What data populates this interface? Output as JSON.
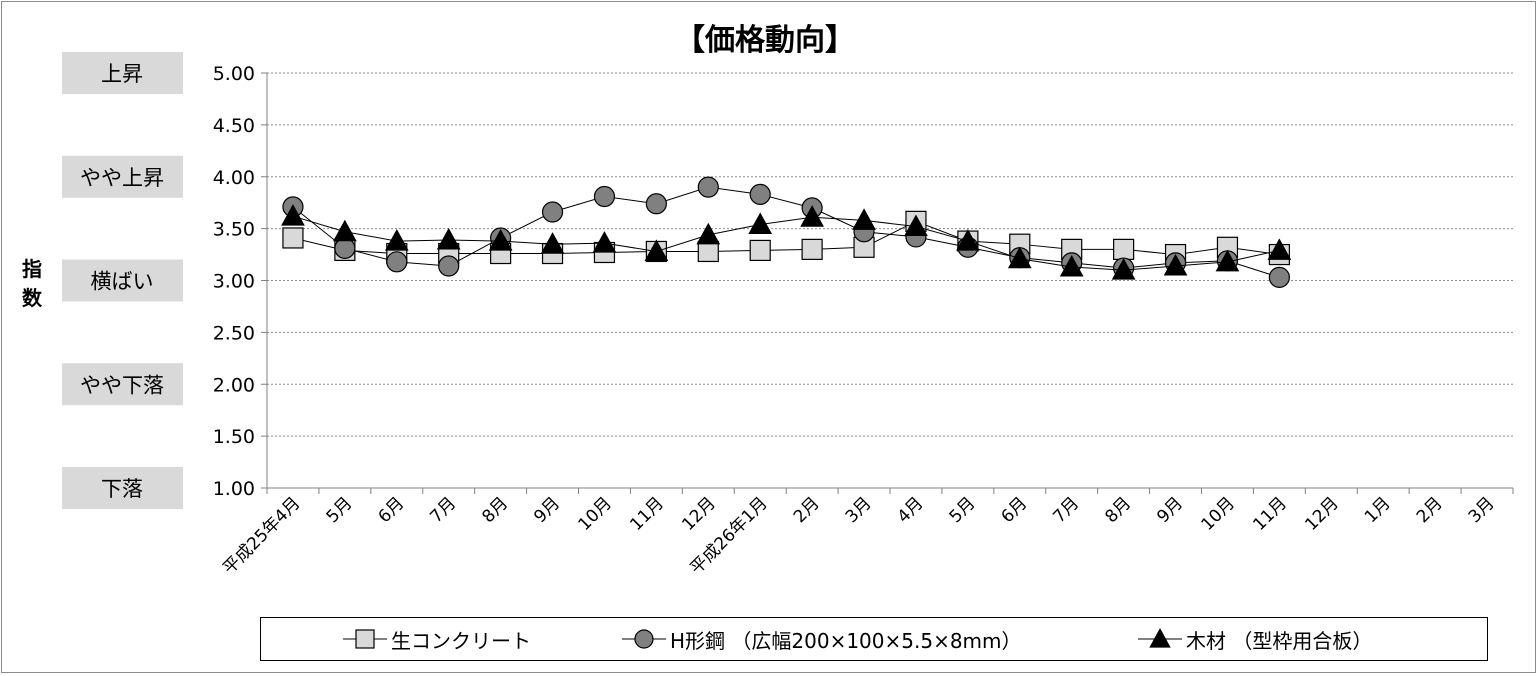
{
  "chart_data": {
    "type": "line",
    "title": "【価格動向】",
    "ylabel": "指数",
    "ylim": [
      1.0,
      5.0
    ],
    "yticks": [
      "1.00",
      "1.50",
      "2.00",
      "2.50",
      "3.00",
      "3.50",
      "4.00",
      "4.50",
      "5.00"
    ],
    "grid": true,
    "legend_position": "bottom",
    "level_labels": [
      {
        "label": "上昇",
        "value": 5.0
      },
      {
        "label": "やや上昇",
        "value": 4.0
      },
      {
        "label": "横ばい",
        "value": 3.0
      },
      {
        "label": "やや下落",
        "value": 2.0
      },
      {
        "label": "下落",
        "value": 1.0
      }
    ],
    "categories": [
      "平成25年4月",
      "5月",
      "6月",
      "7月",
      "8月",
      "9月",
      "10月",
      "11月",
      "12月",
      "平成26年1月",
      "2月",
      "3月",
      "4月",
      "5月",
      "6月",
      "7月",
      "8月",
      "9月",
      "10月",
      "11月",
      "12月",
      "1月",
      "2月",
      "3月"
    ],
    "series": [
      {
        "name": "生コンクリート",
        "marker": "square",
        "fill": "#d9d9d9",
        "values": [
          3.41,
          3.29,
          3.26,
          3.26,
          3.26,
          3.26,
          3.27,
          3.28,
          3.28,
          3.29,
          3.3,
          3.32,
          3.57,
          3.38,
          3.35,
          3.3,
          3.3,
          3.25,
          3.32,
          3.25,
          null,
          null,
          null,
          null
        ]
      },
      {
        "name": "H形鋼 （広幅200×100×5.5×8mm）",
        "marker": "circle",
        "fill": "#808080",
        "values": [
          3.71,
          3.31,
          3.18,
          3.14,
          3.41,
          3.66,
          3.81,
          3.74,
          3.9,
          3.83,
          3.7,
          3.47,
          3.42,
          3.32,
          3.22,
          3.17,
          3.12,
          3.17,
          3.19,
          3.03,
          null,
          null,
          null,
          null
        ]
      },
      {
        "name": "木材 （型枠用合板）",
        "marker": "triangle",
        "fill": "#000000",
        "values": [
          3.62,
          3.47,
          3.38,
          3.39,
          3.38,
          3.35,
          3.36,
          3.28,
          3.44,
          3.54,
          3.61,
          3.58,
          3.52,
          3.38,
          3.21,
          3.13,
          3.1,
          3.14,
          3.18,
          3.29,
          null,
          null,
          null,
          null
        ]
      }
    ]
  }
}
